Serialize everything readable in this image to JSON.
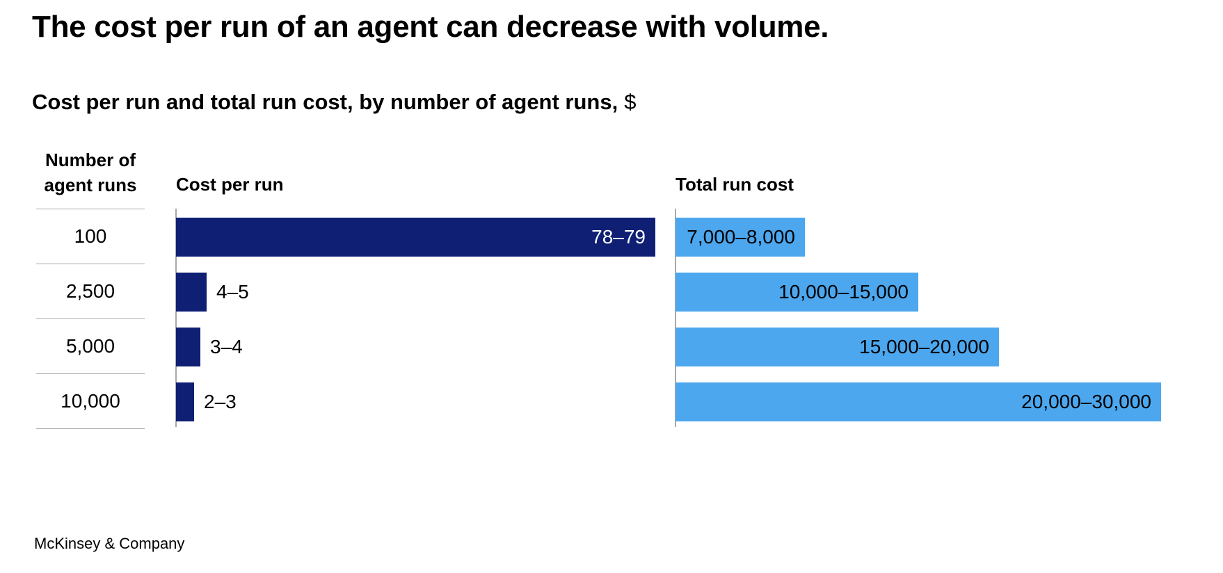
{
  "title": "The cost per run of an agent can decrease with volume.",
  "subtitle": "Cost per run and total run cost, by number of agent runs,",
  "unit": "$",
  "columns": {
    "runs": "Number of agent runs",
    "cost_per_run": "Cost per run",
    "total_run_cost": "Total run cost"
  },
  "colors": {
    "cost_per_run": "#0e1f74",
    "total_run_cost": "#4ca7ee",
    "axis": "#a8a8a8"
  },
  "footer": "McKinsey & Company",
  "chart_data": {
    "type": "bar",
    "orientation": "horizontal",
    "categories": [
      "100",
      "2,500",
      "5,000",
      "10,000"
    ],
    "series": [
      {
        "name": "Cost per run",
        "labels": [
          "78–79",
          "4–5",
          "3–4",
          "2–3"
        ],
        "low": [
          78,
          4,
          3,
          2
        ],
        "high": [
          79,
          5,
          4,
          3
        ],
        "xlim": [
          0,
          80
        ]
      },
      {
        "name": "Total run cost",
        "labels": [
          "7,000–8,000",
          "10,000–15,000",
          "15,000–20,000",
          "20,000–30,000"
        ],
        "low": [
          7000,
          10000,
          15000,
          20000
        ],
        "high": [
          8000,
          15000,
          20000,
          30000
        ],
        "xlim": [
          0,
          30000
        ]
      }
    ]
  }
}
